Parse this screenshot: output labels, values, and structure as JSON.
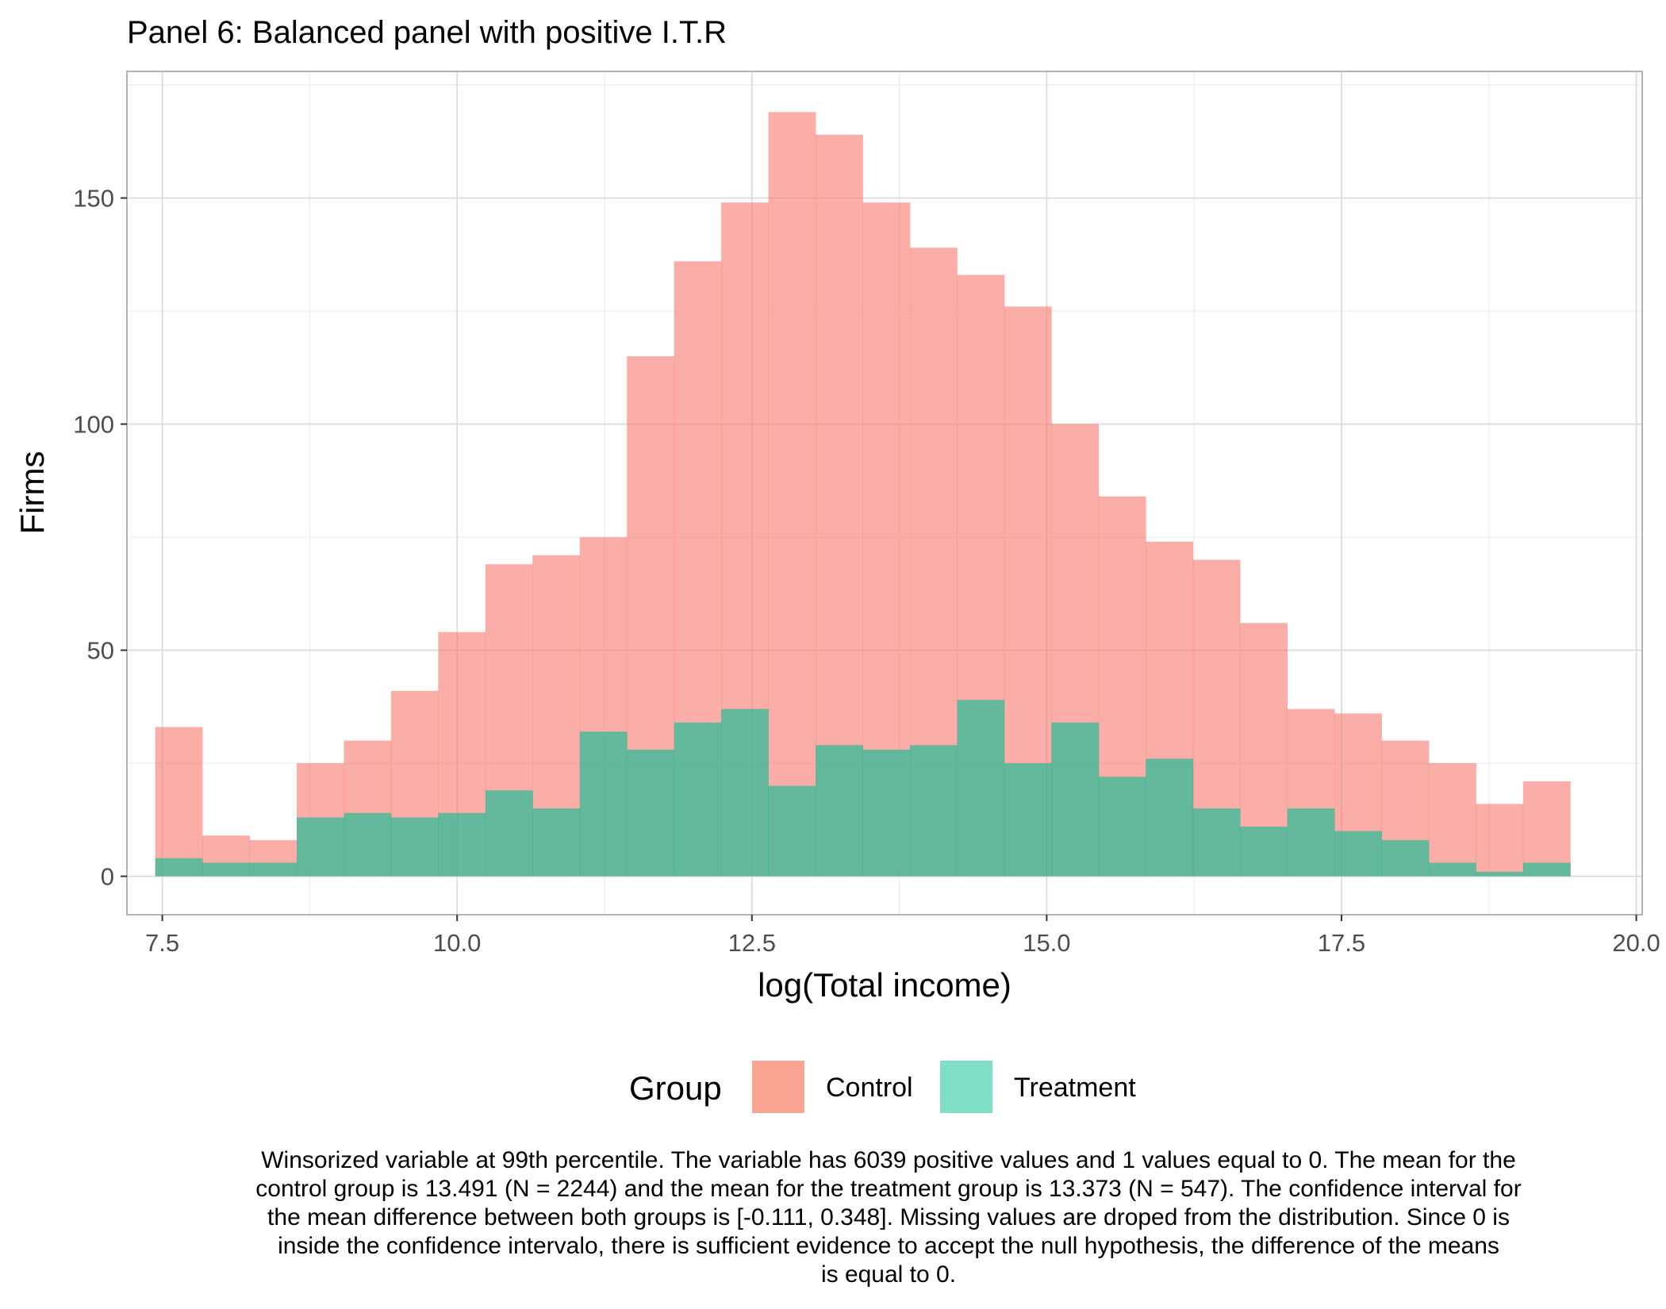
{
  "chart_data": {
    "type": "histogram",
    "title": "Panel 6: Balanced panel with positive I.T.R",
    "xlabel": "log(Total income)",
    "ylabel": "Firms",
    "xlim": [
      7.2,
      20.05
    ],
    "ylim": [
      -8.5,
      178
    ],
    "x_ticks": [
      7.5,
      10.0,
      12.5,
      15.0,
      17.5,
      20.0
    ],
    "x_tick_labels": [
      "7.5",
      "10.0",
      "12.5",
      "15.0",
      "17.5",
      "20.0"
    ],
    "y_ticks": [
      0,
      50,
      100,
      150
    ],
    "y_tick_labels": [
      "0",
      "50",
      "100",
      "150"
    ],
    "grid": true,
    "legend_position": "bottom",
    "bin_start": 7.44,
    "bin_width": 0.4,
    "bins": 30,
    "series": [
      {
        "name": "Control",
        "color": "#F8766D",
        "values": [
          33,
          9,
          8,
          25,
          30,
          41,
          54,
          69,
          71,
          75,
          115,
          136,
          149,
          169,
          164,
          149,
          139,
          133,
          126,
          100,
          84,
          74,
          70,
          56,
          37,
          36,
          30,
          25,
          16,
          21
        ]
      },
      {
        "name": "Treatment",
        "color": "#00BF95",
        "values": [
          4,
          3,
          3,
          13,
          14,
          13,
          14,
          19,
          15,
          32,
          28,
          34,
          37,
          20,
          29,
          28,
          29,
          39,
          25,
          34,
          22,
          26,
          15,
          11,
          15,
          10,
          8,
          3,
          1,
          3
        ]
      }
    ],
    "legend": {
      "title": "Group",
      "entries": [
        {
          "label": "Control",
          "color": "#FAA593"
        },
        {
          "label": "Treatment",
          "color": "#7FDFC5"
        }
      ]
    }
  },
  "caption_lines": [
    "Winsorized variable at 99th percentile. The variable has 6039 positive values and 1 values equal to 0. The mean for the",
    "control group is 13.491 (N = 2244) and the mean for the treatment group is 13.373 (N = 547). The confidence interval for",
    "the mean difference between both groups is [-0.111, 0.348]. Missing values are droped from the distribution. Since 0 is",
    "inside the confidence intervalo, there is sufficient evidence to accept the null hypothesis, the difference of the means",
    "is equal to 0."
  ]
}
